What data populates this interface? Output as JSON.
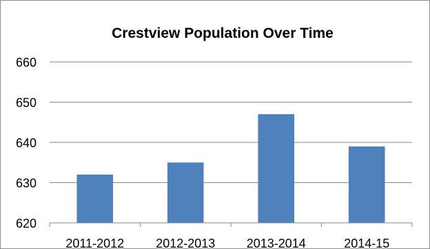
{
  "chart_data": {
    "type": "bar",
    "title": "Crestview Population Over Time",
    "categories": [
      "2011-2012",
      "2012-2013",
      "2013-2014",
      "2014-15"
    ],
    "values": [
      632,
      635,
      647,
      639
    ],
    "ylim": [
      620,
      660
    ],
    "yticks": [
      620,
      630,
      640,
      650,
      660
    ],
    "grid": true,
    "legend": "none",
    "xlabel": "",
    "ylabel": "",
    "bar_color": "#4f81bd",
    "grid_color": "#868686"
  }
}
